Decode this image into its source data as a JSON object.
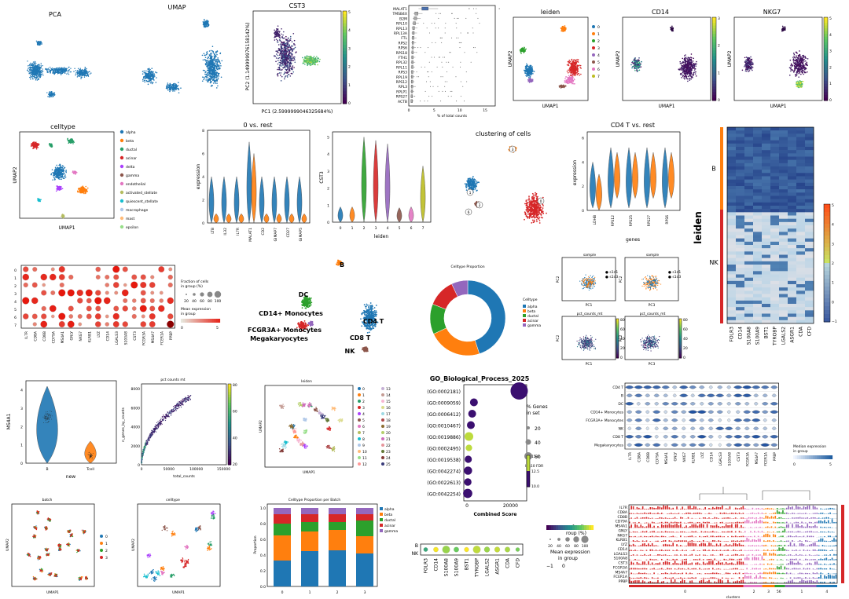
{
  "chart_data": [
    {
      "id": "pca",
      "type": "scatter",
      "title": "PCA",
      "color": "#1f77b4"
    },
    {
      "id": "umap",
      "type": "scatter",
      "title": "UMAP",
      "color": "#1f77b4"
    },
    {
      "id": "cst3_pca",
      "type": "scatter",
      "title": "CST3",
      "xlabel": "PC1 (2.5999999046325684%)",
      "ylabel": "PC2 (1.149999976158142%)",
      "colorbar_ticks": [
        "5",
        "4",
        "3",
        "2",
        "1",
        "0"
      ]
    },
    {
      "id": "highest_expr",
      "type": "box",
      "xlabel": "% of total counts",
      "x_ticks": [
        "0",
        "5",
        "10",
        "15"
      ],
      "genes": [
        "MALAT1",
        "TMSB4X",
        "B2M",
        "RPL10",
        "RPL13",
        "RPL13A",
        "FTL",
        "RPS2",
        "RPS6",
        "RPS18",
        "FTH1",
        "RPL32",
        "RPL11",
        "RPS3",
        "RPL19",
        "RPS12",
        "RPL3",
        "RPLP1",
        "RPS27",
        "ACTB"
      ],
      "medians": [
        3.2,
        1.5,
        1.3,
        1.1,
        0.95,
        0.9,
        0.85,
        0.8,
        0.78,
        0.75,
        0.72,
        0.7,
        0.68,
        0.66,
        0.64,
        0.62,
        0.6,
        0.58,
        0.56,
        0.55
      ]
    },
    {
      "id": "leiden_umap",
      "type": "scatter",
      "title": "leiden",
      "xlabel": "UMAP1",
      "ylabel": "UMAP2",
      "legend": [
        "0",
        "1",
        "2",
        "3",
        "4",
        "5",
        "6",
        "7"
      ],
      "colors": [
        "#1f77b4",
        "#ff7f0e",
        "#2ca02c",
        "#d62728",
        "#9467bd",
        "#8c564b",
        "#e377c2",
        "#bcbd22"
      ]
    },
    {
      "id": "cd14_umap",
      "type": "scatter",
      "title": "CD14",
      "xlabel": "UMAP1",
      "ylabel": "UMAP2",
      "colorbar_ticks": [
        "3",
        "2",
        "1",
        "0"
      ]
    },
    {
      "id": "nkg7_umap",
      "type": "scatter",
      "title": "NKG7",
      "xlabel": "UMAP1",
      "ylabel": "UMAP2",
      "colorbar_ticks": [
        "5",
        "4",
        "3",
        "2",
        "1",
        "0"
      ]
    },
    {
      "id": "celltype_umap",
      "type": "scatter",
      "title": "celltype",
      "xlabel": "UMAP1",
      "ylabel": "UMAP2",
      "legend": [
        "alpha",
        "beta",
        "ductal",
        "acinar",
        "delta",
        "gamma",
        "endothelial",
        "activated_stellate",
        "quiescent_stellate",
        "macrophage",
        "mast",
        "epsilon"
      ],
      "colors": [
        "#1f77b4",
        "#ff7f0e",
        "#279e68",
        "#d62728",
        "#aa40fc",
        "#8c564b",
        "#e377c2",
        "#b5bd61",
        "#17becf",
        "#aec7e8",
        "#ffbb78",
        "#98df8a"
      ]
    },
    {
      "id": "violin_0_vs_rest",
      "type": "violin",
      "title": "0 vs. rest",
      "ylabel": "expression",
      "categories": [
        "LTB",
        "IL32",
        "IL7R",
        "MALAT1",
        "CD2",
        "GIMAP7",
        "CD27",
        "GIMAP5"
      ],
      "y_ticks": [
        "0",
        "2",
        "4",
        "6",
        "8"
      ],
      "ylim": [
        0,
        8
      ]
    },
    {
      "id": "cst3_violin",
      "type": "violin",
      "ylabel": "CST3",
      "xlabel": "leiden",
      "categories": [
        "0",
        "1",
        "2",
        "3",
        "4",
        "5",
        "6",
        "7"
      ],
      "y_ticks": [
        "0",
        "1",
        "2",
        "3",
        "4",
        "5"
      ],
      "ylim": [
        0,
        5.3
      ],
      "medians": [
        0.1,
        0.1,
        4.2,
        4.0,
        3.8,
        0.05,
        0.1,
        2.5
      ]
    },
    {
      "id": "clustering",
      "type": "scatter",
      "title": "clustering of cells",
      "labels": [
        "0",
        "1",
        "2",
        "3",
        "6"
      ]
    },
    {
      "id": "cd4t_vs_rest",
      "type": "violin",
      "title": "CD4 T vs. rest",
      "ylabel": "expression",
      "xlabel": "genes",
      "categories": [
        "LDHB",
        "RPS12",
        "RPS25",
        "RPS27",
        "RPS6"
      ],
      "y_ticks": [
        "0",
        "2",
        "4",
        "6"
      ],
      "ylim": [
        0,
        6.5
      ]
    },
    {
      "id": "heatmap_bnk",
      "type": "heatmap",
      "ylabel": "leiden",
      "groups": [
        "B",
        "NK"
      ],
      "genes": [
        "FOLR3",
        "CD14",
        "S100A8",
        "S100A9",
        "BST1",
        "TYROBP",
        "LGALS2",
        "ASGR1",
        "CDA",
        "CFD"
      ],
      "colorbar_ticks": [
        "5",
        "4",
        "3",
        "2",
        "1",
        "0",
        "−1"
      ]
    },
    {
      "id": "dotplot_leiden",
      "type": "dotplot",
      "rows": [
        "0",
        "1",
        "2",
        "3",
        "4",
        "5",
        "6",
        "7"
      ],
      "genes": [
        "IL7R",
        "CD8A",
        "CD8B",
        "CD79A",
        "MS4A1",
        "GNLY",
        "NKG7",
        "KLRB1",
        "LYZ",
        "CD14",
        "LGALS3",
        "S100A8",
        "CST3",
        "FCGR3A",
        "MS4A7",
        "FCER1A",
        "PPBP"
      ],
      "legend_size_title": "Fraction of cells\nin group (%)",
      "legend_size_ticks": [
        "20",
        "40",
        "60",
        "80",
        "100"
      ],
      "legend_color_title": "Mean expression\nin group",
      "legend_color_ticks": [
        "0",
        "5"
      ]
    },
    {
      "id": "pbmc_annot",
      "type": "scatter",
      "labels": [
        "B",
        "DC",
        "CD14+ Monocytes",
        "FCGR3A+ Monocytes",
        "Megakaryocytes",
        "CD4 T",
        "CD8 T",
        "NK"
      ]
    },
    {
      "id": "donut",
      "type": "pie",
      "title": "Celltype Proportion",
      "legend_title": "Celltype",
      "labels": [
        "alpha",
        "beta",
        "ductal",
        "acinar",
        "gamma"
      ],
      "values": [
        45,
        23,
        13,
        12,
        7
      ],
      "colors": [
        "#1f77b4",
        "#ff7f0e",
        "#2ca02c",
        "#d62728",
        "#9467bd"
      ]
    },
    {
      "id": "qc_grid",
      "type": "scatter",
      "titles": [
        "sample",
        "sample",
        "pct_counts_mt",
        "pct_counts_mt"
      ],
      "axis": [
        "PC1",
        "PC2",
        "PC3"
      ],
      "legend": [
        "s1d1",
        "s1d3"
      ],
      "colorbar_ticks": [
        "80",
        "60",
        "40",
        "20",
        "0"
      ]
    },
    {
      "id": "ms4a1_violin",
      "type": "violin",
      "ylabel": "MS4A1",
      "xlabel": "new",
      "categories": [
        "B",
        "Tcell"
      ],
      "y_ticks": [
        "0",
        "1",
        "2",
        "3",
        "4"
      ],
      "ylim": [
        0,
        4.5
      ]
    },
    {
      "id": "pct_counts_mt",
      "type": "scatter",
      "title": "pct counts mt",
      "xlabel": "total_counts",
      "ylabel": "n_genes_by_counts",
      "x_ticks": [
        "0",
        "50000",
        "100000",
        "150000"
      ],
      "y_ticks": [
        "0",
        "2000",
        "4000",
        "6000",
        "8000"
      ],
      "colorbar_ticks": [
        "80",
        "60",
        "40",
        "20"
      ]
    },
    {
      "id": "leiden26",
      "type": "scatter",
      "title": "leiden",
      "xlabel": "UMAP1",
      "ylabel": "UMAP2",
      "legend": [
        "0",
        "1",
        "2",
        "3",
        "4",
        "5",
        "6",
        "7",
        "8",
        "9",
        "10",
        "11",
        "12",
        "13",
        "14",
        "15",
        "16",
        "17",
        "18",
        "19",
        "20",
        "21",
        "22",
        "23",
        "24",
        "25"
      ]
    },
    {
      "id": "go_bp",
      "type": "dotplot",
      "title": "GO_Biological_Process_2025",
      "xlabel": "Combined Score",
      "x_ticks": [
        "0",
        "20000"
      ],
      "terms": [
        "(GO:0002181)",
        "(GO:0009059)",
        "(GO:0006412)",
        "(GO:0010467)",
        "(GO:0019886)",
        "(GO:0002495)",
        "(GO:0019538)",
        "(GO:0042274)",
        "(GO:0022613)",
        "(GO:0042254)"
      ],
      "scores": [
        24000,
        3200,
        2400,
        1800,
        900,
        900,
        600,
        500,
        400,
        350
      ],
      "legend_size_title": "% Genes\nin set",
      "legend_size_ticks": [
        "20",
        "40",
        "60"
      ],
      "legend_color_title": "log10 FDR",
      "legend_color_ticks": [
        "15.0",
        "12.5",
        "10.0"
      ]
    },
    {
      "id": "stacked_violin",
      "type": "stacked_violin",
      "rows": [
        "CD4 T",
        "B",
        "DC",
        "CD14+ Monocytes",
        "FCGR3A+ Monocytes",
        "NK",
        "CD8 T",
        "Megakaryocytes"
      ],
      "genes": [
        "IL7R",
        "CD8A",
        "CD8B",
        "CD79A",
        "MS4A1",
        "GNLY",
        "NKG7",
        "KLRB1",
        "LYZ",
        "CD14",
        "LGALS3",
        "S100A8",
        "CST3",
        "FCGR3A",
        "MS4A7",
        "FCER1A",
        "PPBP"
      ],
      "legend_title": "Median expression\nin group",
      "legend_ticks": [
        "0",
        "5"
      ]
    },
    {
      "id": "batch_umap",
      "type": "scatter",
      "title": "batch",
      "xlabel": "UMAP1",
      "ylabel": "UMAP2",
      "legend": [
        "0",
        "1",
        "2",
        "3"
      ],
      "colors": [
        "#1f77b4",
        "#ff7f0e",
        "#2ca02c",
        "#d62728"
      ]
    },
    {
      "id": "celltype_umap2",
      "type": "scatter",
      "title": "celltype",
      "xlabel": "UMAP1",
      "ylabel": "UMAP2"
    },
    {
      "id": "stacked_bar",
      "type": "bar",
      "title": "Celltype Proportion per Batch",
      "ylabel": "Proportion",
      "categories": [
        "0",
        "1",
        "2",
        "3"
      ],
      "y_ticks": [
        "0.0",
        "0.2",
        "0.4",
        "0.6",
        "0.8",
        "1.0"
      ],
      "ylim": [
        0,
        1
      ],
      "series": [
        {
          "name": "alpha",
          "values": [
            0.33,
            0.45,
            0.46,
            0.42
          ]
        },
        {
          "name": "beta",
          "values": [
            0.32,
            0.25,
            0.26,
            0.22
          ]
        },
        {
          "name": "ductal",
          "values": [
            0.15,
            0.12,
            0.1,
            0.2
          ]
        },
        {
          "name": "acinar",
          "values": [
            0.12,
            0.1,
            0.1,
            0.08
          ]
        },
        {
          "name": "gamma",
          "values": [
            0.08,
            0.08,
            0.08,
            0.08
          ]
        }
      ],
      "colors": [
        "#1f77b4",
        "#ff7f0e",
        "#2ca02c",
        "#d62728",
        "#9467bd"
      ]
    },
    {
      "id": "bnk_dot",
      "type": "dotplot",
      "rows": [
        "B",
        "NK"
      ],
      "genes": [
        "FOLR3",
        "CD14",
        "S100A8",
        "S100A9",
        "BST1",
        "TYROBP",
        "LGALS2",
        "ASGR1",
        "CDA",
        "CFD"
      ],
      "legend_size_title": "on of cells\nroup (%)",
      "legend_size_ticks": [
        "20",
        "40",
        "60",
        "80",
        "100"
      ],
      "legend_color_title": "Mean expression\nin group",
      "legend_color_ticks": [
        "−1",
        "0"
      ]
    },
    {
      "id": "tracksplot",
      "type": "heatmap",
      "genes": [
        "IL7R",
        "CD8A",
        "CD8B",
        "CD79A",
        "MS4A1",
        "GNLY",
        "NKG7",
        "KLRB1",
        "LYZ",
        "CD14",
        "LGALS3",
        "S100A8",
        "CST3",
        "FCGR3A",
        "MS4A7",
        "FCER1A",
        "PPBP"
      ],
      "xlabel": "clusters",
      "cluster_ticks": [
        "0",
        "2",
        "3",
        "56",
        "1",
        "4"
      ]
    }
  ]
}
